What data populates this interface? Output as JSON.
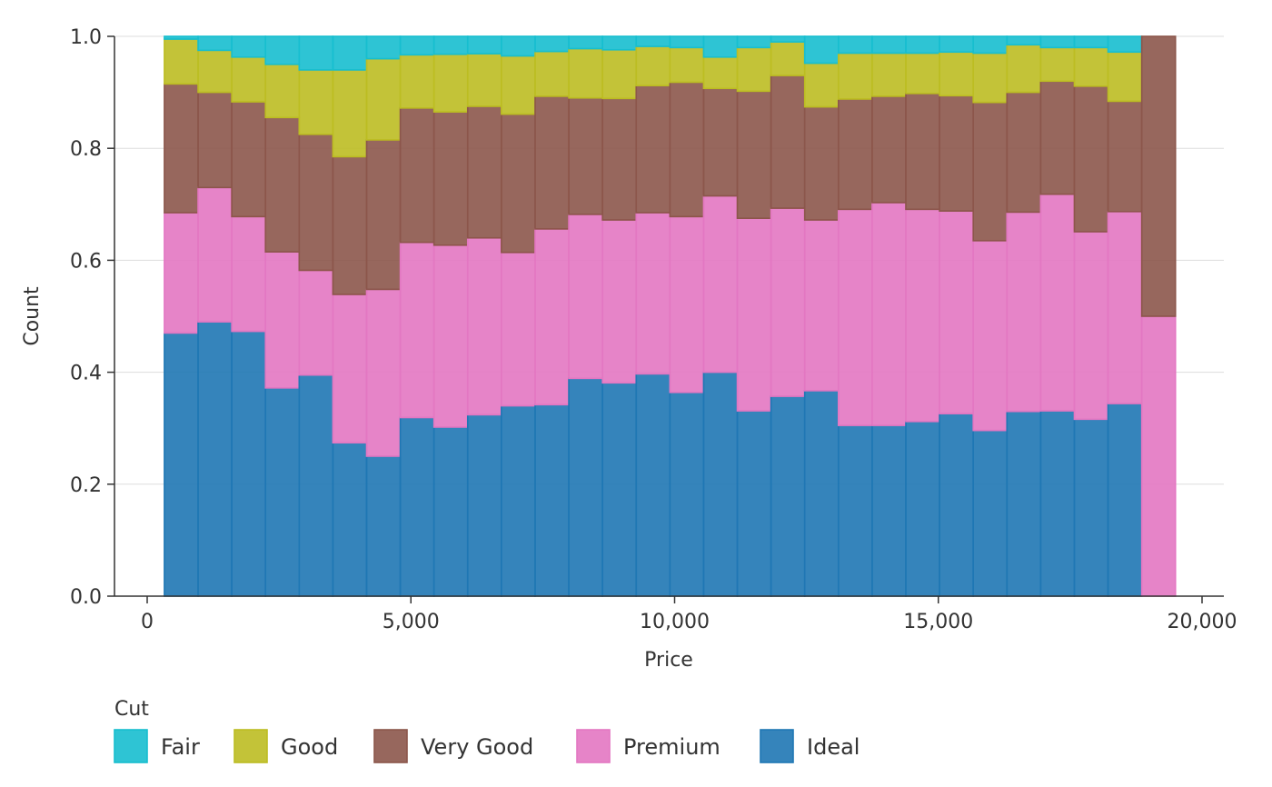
{
  "chart_data": {
    "type": "bar",
    "stacked": "fill",
    "xlabel": "Price",
    "ylabel": "Count",
    "legend_title": "Cut",
    "legend_position": "bottom-left",
    "xlim": [
      -600,
      20400
    ],
    "ylim": [
      0,
      1
    ],
    "x_ticks": [
      0,
      5000,
      10000,
      15000,
      20000
    ],
    "x_tick_labels": [
      "0",
      "5,000",
      "10,000",
      "15,000",
      "20,000"
    ],
    "y_ticks": [
      0,
      0.2,
      0.4,
      0.6,
      0.8,
      1.0
    ],
    "y_tick_labels": [
      "0.0",
      "0.2",
      "0.4",
      "0.6",
      "0.8",
      "1.0"
    ],
    "grid": "horizontal",
    "bins": [
      [
        326,
        965
      ],
      [
        965,
        1604
      ],
      [
        1604,
        2243
      ],
      [
        2243,
        2882
      ],
      [
        2882,
        3521
      ],
      [
        3521,
        4160
      ],
      [
        4160,
        4799
      ],
      [
        4799,
        5438
      ],
      [
        5438,
        6077
      ],
      [
        6077,
        6716
      ],
      [
        6716,
        7355
      ],
      [
        7355,
        7994
      ],
      [
        7994,
        8633
      ],
      [
        8633,
        9272
      ],
      [
        9272,
        9911
      ],
      [
        9911,
        10550
      ],
      [
        10550,
        11189
      ],
      [
        11189,
        11828
      ],
      [
        11828,
        12467
      ],
      [
        12467,
        13106
      ],
      [
        13106,
        13745
      ],
      [
        13745,
        14384
      ],
      [
        14384,
        15023
      ],
      [
        15023,
        15662
      ],
      [
        15662,
        16301
      ],
      [
        16301,
        16940
      ],
      [
        16940,
        17579
      ],
      [
        17579,
        18218
      ],
      [
        18218,
        18857
      ],
      [
        18857,
        19496
      ]
    ],
    "series": [
      {
        "name": "Fair",
        "color": "#17becf",
        "values": [
          0.005,
          0.025,
          0.037,
          0.05,
          0.06,
          0.06,
          0.04,
          0.033,
          0.032,
          0.031,
          0.035,
          0.027,
          0.022,
          0.024,
          0.018,
          0.02,
          0.037,
          0.02,
          0.01,
          0.048,
          0.03,
          0.03,
          0.03,
          0.028,
          0.03,
          0.015,
          0.02,
          0.02,
          0.028,
          0.0
        ]
      },
      {
        "name": "Good",
        "color": "#bcbd22",
        "values": [
          0.08,
          0.075,
          0.08,
          0.095,
          0.115,
          0.155,
          0.145,
          0.095,
          0.103,
          0.094,
          0.104,
          0.08,
          0.088,
          0.087,
          0.07,
          0.062,
          0.056,
          0.078,
          0.06,
          0.078,
          0.082,
          0.077,
          0.072,
          0.078,
          0.088,
          0.085,
          0.06,
          0.069,
          0.088,
          0.0
        ]
      },
      {
        "name": "Very Good",
        "color": "#8c564b",
        "values": [
          0.23,
          0.17,
          0.205,
          0.24,
          0.243,
          0.246,
          0.267,
          0.24,
          0.238,
          0.235,
          0.247,
          0.237,
          0.208,
          0.217,
          0.227,
          0.24,
          0.192,
          0.227,
          0.237,
          0.202,
          0.197,
          0.19,
          0.207,
          0.206,
          0.247,
          0.214,
          0.202,
          0.26,
          0.197,
          0.5
        ]
      },
      {
        "name": "Premium",
        "color": "#e377c2",
        "values": [
          0.215,
          0.24,
          0.205,
          0.243,
          0.187,
          0.265,
          0.298,
          0.313,
          0.325,
          0.316,
          0.274,
          0.314,
          0.293,
          0.291,
          0.288,
          0.314,
          0.315,
          0.344,
          0.336,
          0.305,
          0.386,
          0.398,
          0.379,
          0.362,
          0.339,
          0.356,
          0.387,
          0.335,
          0.343,
          0.5
        ]
      },
      {
        "name": "Ideal",
        "color": "#1f77b4",
        "values": [
          0.47,
          0.49,
          0.473,
          0.372,
          0.395,
          0.274,
          0.25,
          0.319,
          0.302,
          0.324,
          0.34,
          0.342,
          0.389,
          0.381,
          0.397,
          0.364,
          0.4,
          0.331,
          0.357,
          0.367,
          0.305,
          0.305,
          0.312,
          0.326,
          0.296,
          0.33,
          0.331,
          0.316,
          0.344,
          0.0
        ]
      }
    ]
  }
}
